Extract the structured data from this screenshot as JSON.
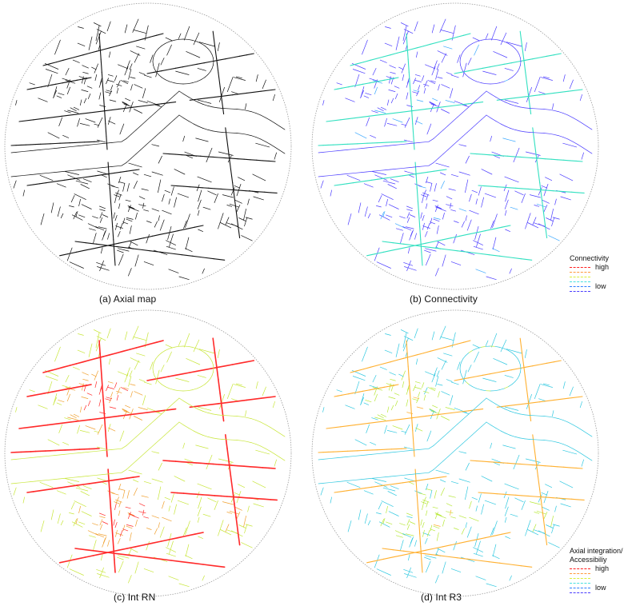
{
  "captions": {
    "a": "(a) Axial map",
    "b": "(b) Connectivity",
    "c": "(c) Int RN",
    "d": "(d) Int R3"
  },
  "legend_connectivity": {
    "title": "Connectivity",
    "high": "high",
    "low": "low",
    "colors": [
      "#ff2020",
      "#ff9a3c",
      "#d9ee3a",
      "#46e0e0",
      "#2f7fff",
      "#4a3cff"
    ]
  },
  "legend_integration": {
    "title_line1": "Axial integration/",
    "title_line2": "Accessibiliy",
    "high": "high",
    "low": "low",
    "colors": [
      "#ff2020",
      "#ff9a3c",
      "#d9ee3a",
      "#46e0e0",
      "#2f7fff",
      "#4a3cff"
    ]
  },
  "palettes": {
    "axial": {
      "base": "#111111",
      "accent": "#111111",
      "hot": "#111111"
    },
    "connectivity": {
      "base": "#4b3cff",
      "accent": "#3aa8ff",
      "hot": "#32e0c0"
    },
    "int_rn": {
      "base": "#c8e63a",
      "accent": "#f0a030",
      "hot": "#ff2a2a"
    },
    "int_r3": {
      "base": "#30c8e0",
      "accent": "#b8e83a",
      "hot": "#ffb030"
    }
  }
}
